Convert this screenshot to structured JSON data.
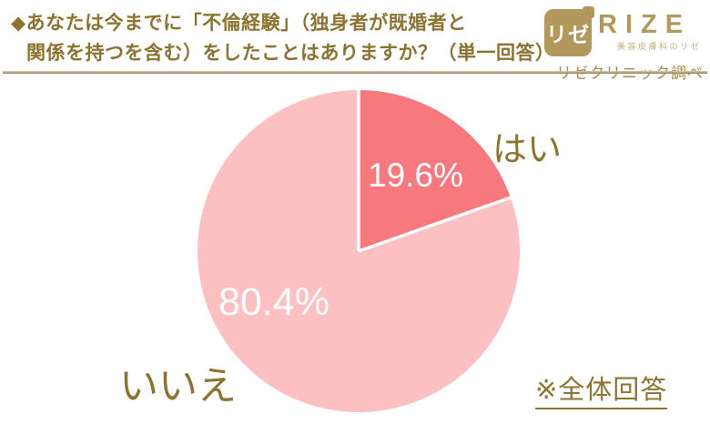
{
  "header": {
    "title_line1": "◆あなたは今までに「不倫経験」（独身者が既婚者と",
    "title_line2": "関係を持つを含む）をしたことはありますか？（単一回答）",
    "title_color": "#8c7330"
  },
  "logo": {
    "mark_text": "リゼ",
    "brand": "RIZE",
    "tagline": "美容皮膚科のリゼ",
    "credit": "リゼクリニック調べ",
    "gold_color": "#b3985b"
  },
  "chart_data": {
    "type": "pie",
    "title": "あなたは今までに「不倫経験」（独身者が既婚者と関係を持つを含む）をしたことはありますか？（単一回答）",
    "start_angle_deg": 0,
    "direction": "clockwise",
    "slices": [
      {
        "label": "はい",
        "value": 19.6,
        "display": "19.6%",
        "color": "#f7787d"
      },
      {
        "label": "いいえ",
        "value": 80.4,
        "display": "80.4%",
        "color": "#fcbfc2"
      }
    ],
    "divider_color": "#ffffff",
    "category_label_color": "#8c7330",
    "value_label_color": "#ffffff",
    "legend": "none"
  },
  "note": {
    "text": "※全体回答"
  }
}
